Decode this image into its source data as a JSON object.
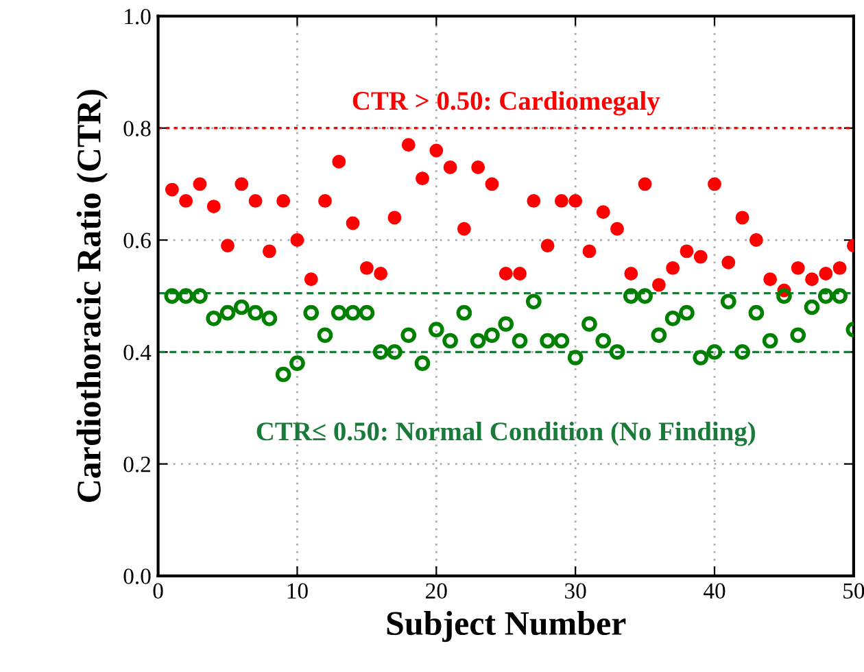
{
  "chart_data": {
    "type": "scatter",
    "xlabel": "Subject Number",
    "ylabel": "Cardiothoracic Ratio (CTR)",
    "x": [
      1,
      2,
      3,
      4,
      5,
      6,
      7,
      8,
      9,
      10,
      11,
      12,
      13,
      14,
      15,
      16,
      17,
      18,
      19,
      20,
      21,
      22,
      23,
      24,
      25,
      26,
      27,
      28,
      29,
      30,
      31,
      32,
      33,
      34,
      35,
      36,
      37,
      38,
      39,
      40,
      41,
      42,
      43,
      44,
      45,
      46,
      47,
      48,
      49,
      50
    ],
    "series": [
      {
        "color": "#ff0000",
        "marker": "circle",
        "values": [
          0.69,
          0.67,
          0.7,
          0.66,
          0.59,
          0.7,
          0.67,
          0.58,
          0.67,
          0.6,
          0.53,
          0.67,
          0.74,
          0.63,
          0.55,
          0.54,
          0.64,
          0.77,
          0.71,
          0.76,
          0.73,
          0.62,
          0.73,
          0.7,
          0.54,
          0.54,
          0.67,
          0.59,
          0.67,
          0.67,
          0.58,
          0.65,
          0.62,
          0.54,
          0.7,
          0.52,
          0.55,
          0.58,
          0.57,
          0.7,
          0.56,
          0.64,
          0.6,
          0.53,
          0.51,
          0.55,
          0.53,
          0.54,
          0.55,
          0.59
        ]
      },
      {
        "color": "#008000",
        "marker": "circle",
        "values": [
          0.5,
          0.5,
          0.5,
          0.46,
          0.47,
          0.48,
          0.47,
          0.46,
          0.36,
          0.38,
          0.47,
          0.43,
          0.47,
          0.47,
          0.47,
          0.4,
          0.4,
          0.43,
          0.38,
          0.44,
          0.42,
          0.47,
          0.42,
          0.43,
          0.45,
          0.42,
          0.49,
          0.42,
          0.42,
          0.39,
          0.45,
          0.42,
          0.4,
          0.5,
          0.5,
          0.43,
          0.46,
          0.47,
          0.39,
          0.4,
          0.49,
          0.4,
          0.47,
          0.42,
          0.5,
          0.43,
          0.48,
          0.5,
          0.5,
          0.44
        ]
      }
    ],
    "xlim": [
      0,
      50
    ],
    "xticks": [
      0,
      10,
      20,
      30,
      40,
      50
    ],
    "ylim": [
      0,
      1
    ],
    "yticks": [
      {
        "value": 0,
        "label": "0.0"
      },
      {
        "value": 0.2,
        "label": "0.2"
      },
      {
        "value": 0.4,
        "label": "0.4"
      },
      {
        "value": 0.6,
        "label": "0.6"
      },
      {
        "value": 0.8,
        "label": "0.8"
      },
      {
        "value": 1,
        "label": "1.0"
      }
    ],
    "grid": true,
    "legend": false,
    "ref_lines": [
      {
        "axis": "y",
        "value": 0.8,
        "color": "#ff0000",
        "line_style": "dotted",
        "label": "CTR > 0.50: Cardiomegaly"
      },
      {
        "axis": "y",
        "value": 0.505,
        "color": "#1a7a3a",
        "line_style": "dashed"
      },
      {
        "axis": "y",
        "value": 0.4,
        "color": "#1a7a3a",
        "line_style": "dashed",
        "label": "CTR≤ 0.50: Normal Condition (No Finding)"
      }
    ]
  }
}
